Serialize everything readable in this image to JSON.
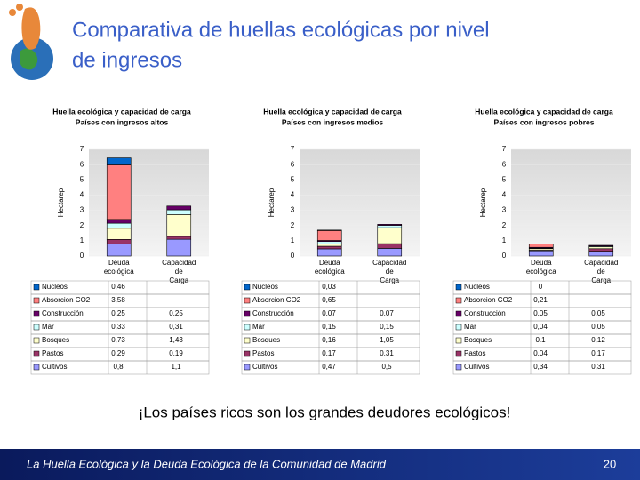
{
  "slide_title": [
    "Comparativa de huellas ecológicas por nivel",
    "de ingresos"
  ],
  "caption": "¡Los países ricos son los grandes deudores ecológicos!",
  "footer": "La Huella Ecológica y la Deuda Ecológica de la Comunidad de Madrid",
  "page_number": "20",
  "chart_data": [
    {
      "type": "bar",
      "stacked": true,
      "title": "Huella ecológica y capacidad de carga",
      "subtitle": "Países con ingresos altos",
      "y_label": "Hectarep",
      "categories": [
        "Deuda ecológica",
        "Capacidad de Carga"
      ],
      "ylim": [
        0,
        7
      ],
      "yticks": [
        0,
        1,
        2,
        3,
        4,
        5,
        6,
        7
      ],
      "series": [
        {
          "name": "Nucleos",
          "color": "#0066cc",
          "values": [
            0.46,
            null
          ],
          "value_labels": [
            "0,46",
            null
          ]
        },
        {
          "name": "Absorcion CO2",
          "color": "#ff8080",
          "values": [
            3.58,
            null
          ],
          "value_labels": [
            "3,58",
            null
          ]
        },
        {
          "name": "Construcción",
          "color": "#660066",
          "values": [
            0.25,
            0.25
          ],
          "value_labels": [
            "0,25",
            "0,25"
          ]
        },
        {
          "name": "Mar",
          "color": "#ccffff",
          "values": [
            0.33,
            0.31
          ],
          "value_labels": [
            "0,33",
            "0,31"
          ]
        },
        {
          "name": "Bosques",
          "color": "#ffffcc",
          "values": [
            0.73,
            1.43
          ],
          "value_labels": [
            "0,73",
            "1,43"
          ]
        },
        {
          "name": "Pastos",
          "color": "#993366",
          "values": [
            0.29,
            0.19
          ],
          "value_labels": [
            "0,29",
            "0,19"
          ]
        },
        {
          "name": "Cultivos",
          "color": "#9999ff",
          "values": [
            0.8,
            1.1
          ],
          "value_labels": [
            "0,8",
            "1,1"
          ]
        }
      ]
    },
    {
      "type": "bar",
      "stacked": true,
      "title": "Huella ecológica y capacidad de carga",
      "subtitle": "Países con ingresos medios",
      "y_label": "Hectarep",
      "categories": [
        "Deuda ecológica",
        "Capacidad de Carga"
      ],
      "ylim": [
        0,
        7
      ],
      "yticks": [
        0,
        1,
        2,
        3,
        4,
        5,
        6,
        7
      ],
      "series": [
        {
          "name": "Nucleos",
          "color": "#0066cc",
          "values": [
            0.03,
            null
          ],
          "value_labels": [
            "0,03",
            null
          ]
        },
        {
          "name": "Absorcion CO2",
          "color": "#ff8080",
          "values": [
            0.65,
            null
          ],
          "value_labels": [
            "0,65",
            null
          ]
        },
        {
          "name": "Construcción",
          "color": "#660066",
          "values": [
            0.07,
            0.07
          ],
          "value_labels": [
            "0,07",
            "0,07"
          ]
        },
        {
          "name": "Mar",
          "color": "#ccffff",
          "values": [
            0.15,
            0.15
          ],
          "value_labels": [
            "0,15",
            "0,15"
          ]
        },
        {
          "name": "Bosques",
          "color": "#ffffcc",
          "values": [
            0.16,
            1.05
          ],
          "value_labels": [
            "0,16",
            "1,05"
          ]
        },
        {
          "name": "Pastos",
          "color": "#993366",
          "values": [
            0.17,
            0.31
          ],
          "value_labels": [
            "0,17",
            "0,31"
          ]
        },
        {
          "name": "Cultivos",
          "color": "#9999ff",
          "values": [
            0.47,
            0.5
          ],
          "value_labels": [
            "0,47",
            "0,5"
          ]
        }
      ]
    },
    {
      "type": "bar",
      "stacked": true,
      "title": "Huella ecológica y capacidad de carga",
      "subtitle": "Países con ingresos pobres",
      "y_label": "Hectarep",
      "categories": [
        "Deuda ecológica",
        "Capacidad de Carga"
      ],
      "ylim": [
        0,
        7
      ],
      "yticks": [
        0,
        1,
        2,
        3,
        4,
        5,
        6,
        7
      ],
      "series": [
        {
          "name": "Nucleos",
          "color": "#0066cc",
          "values": [
            0,
            null
          ],
          "value_labels": [
            "0",
            null
          ]
        },
        {
          "name": "Absorcion CO2",
          "color": "#ff8080",
          "values": [
            0.21,
            null
          ],
          "value_labels": [
            "0,21",
            null
          ]
        },
        {
          "name": "Construcción",
          "color": "#660066",
          "values": [
            0.05,
            0.05
          ],
          "value_labels": [
            "0,05",
            "0,05"
          ]
        },
        {
          "name": "Mar",
          "color": "#ccffff",
          "values": [
            0.04,
            0.05
          ],
          "value_labels": [
            "0,04",
            "0,05"
          ]
        },
        {
          "name": "Bosques",
          "color": "#ffffcc",
          "values": [
            0.1,
            0.12
          ],
          "value_labels": [
            "0.1",
            "0,12"
          ]
        },
        {
          "name": "Pastos",
          "color": "#993366",
          "values": [
            0.04,
            0.17
          ],
          "value_labels": [
            "0,04",
            "0,17"
          ]
        },
        {
          "name": "Cultivos",
          "color": "#9999ff",
          "values": [
            0.34,
            0.31
          ],
          "value_labels": [
            "0,34",
            "0,31"
          ]
        }
      ]
    }
  ]
}
